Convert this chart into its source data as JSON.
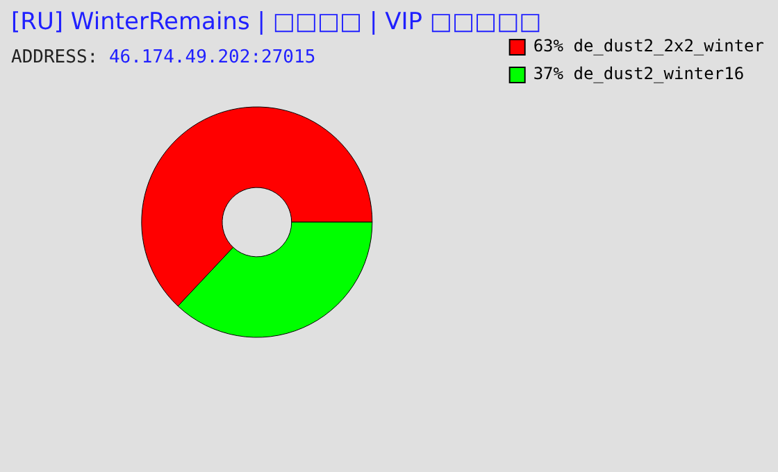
{
  "chart_data": {
    "type": "donut",
    "title": "[RU] WinterRemains | □□□□ | VIP □□□□□",
    "subtitle": "ADDRESS: 46.174.49.202:27015",
    "categories": [
      "de_dust2_2x2_winter",
      "de_dust2_winter16"
    ],
    "values": [
      63,
      37
    ],
    "colors": [
      "#ff0000",
      "#00ff00"
    ],
    "value_labels": [
      "63%",
      "37%"
    ],
    "legend": "top right"
  }
}
